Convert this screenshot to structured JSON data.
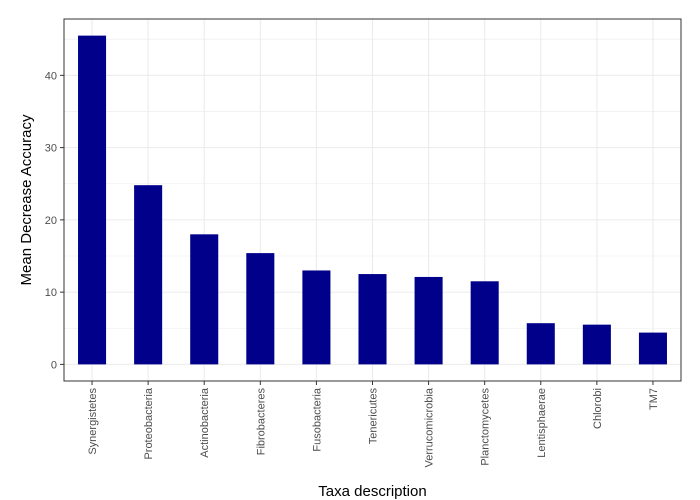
{
  "chart_data": {
    "type": "bar",
    "title": "",
    "xlabel": "Taxa description",
    "ylabel": "Mean Decrease Accuracy",
    "categories": [
      "Synergistetes",
      "Proteobacteria",
      "Actinobacteria",
      "Fibrobacteres",
      "Fusobacteria",
      "Tenericutes",
      "Verrucomicrobia",
      "Planctomycetes",
      "Lentisphaerae",
      "Chlorobi",
      "TM7"
    ],
    "values": [
      45.5,
      24.8,
      18.0,
      15.4,
      13.0,
      12.5,
      12.1,
      11.5,
      5.7,
      5.5,
      4.4
    ],
    "ylim": [
      -2.3,
      47.8
    ],
    "yticks": [
      0,
      10,
      20,
      30,
      40
    ],
    "grid": true,
    "legend": "none",
    "bar_color": "#00008B",
    "background": "#FFFFFF",
    "panel_border_color": "#333333",
    "grid_color": "#EBEBEB"
  }
}
